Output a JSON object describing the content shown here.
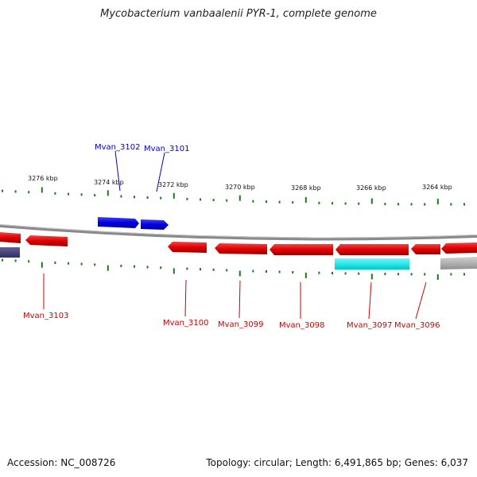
{
  "title": "Mycobacterium vanbaalenii PYR-1, complete genome",
  "footer": {
    "accession": "Accession: NC_008726",
    "topology": "Topology: circular; Length: 6,491,865 bp; Genes: 6,037"
  },
  "colors": {
    "forward_gene": "#0000e0",
    "reverse_gene": "#e00000",
    "gene_label_forward": "#0000cc",
    "gene_label_reverse": "#cc0000",
    "ticks": "#1a7a1a",
    "backbone": "#808080",
    "highlight": "#00e5e5",
    "dark_gene": "#40407a",
    "grey_gene": "#b0b0b0"
  },
  "scale_labels": [
    "3276 kbp",
    "3274 kbp",
    "3272 kbp",
    "3270 kbp",
    "3268 kbp",
    "3266 kbp",
    "3264 kbp"
  ],
  "gene_labels": {
    "forward": [
      "Mvan_3102",
      "Mvan_3101"
    ],
    "reverse": [
      "Mvan_3103",
      "Mvan_3100",
      "Mvan_3099",
      "Mvan_3098",
      "Mvan_3097",
      "Mvan_3096"
    ]
  }
}
